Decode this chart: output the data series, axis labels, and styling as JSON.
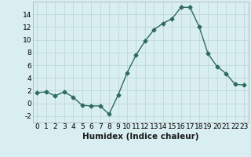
{
  "x": [
    0,
    1,
    2,
    3,
    4,
    5,
    6,
    7,
    8,
    9,
    10,
    11,
    12,
    13,
    14,
    15,
    16,
    17,
    18,
    19,
    20,
    21,
    22,
    23
  ],
  "y": [
    1.7,
    1.8,
    1.2,
    1.8,
    1.0,
    -0.3,
    -0.4,
    -0.4,
    -1.7,
    1.3,
    4.8,
    7.6,
    9.8,
    11.6,
    12.6,
    13.3,
    15.1,
    15.1,
    12.1,
    7.8,
    5.8,
    4.7,
    3.0,
    2.9
  ],
  "line_color": "#2e6b5e",
  "marker": "D",
  "marker_size": 2.5,
  "bg_color": "#d9eef0",
  "grid_color": "#b8d4d6",
  "xlabel": "Humidex (Indice chaleur)",
  "ylim": [
    -3,
    16
  ],
  "yticks": [
    -2,
    0,
    2,
    4,
    6,
    8,
    10,
    12,
    14
  ],
  "xticks": [
    0,
    1,
    2,
    3,
    4,
    5,
    6,
    7,
    8,
    9,
    10,
    11,
    12,
    13,
    14,
    15,
    16,
    17,
    18,
    19,
    20,
    21,
    22,
    23
  ],
  "tick_label_size": 6.5,
  "xlabel_size": 7.5,
  "linewidth": 1.0
}
